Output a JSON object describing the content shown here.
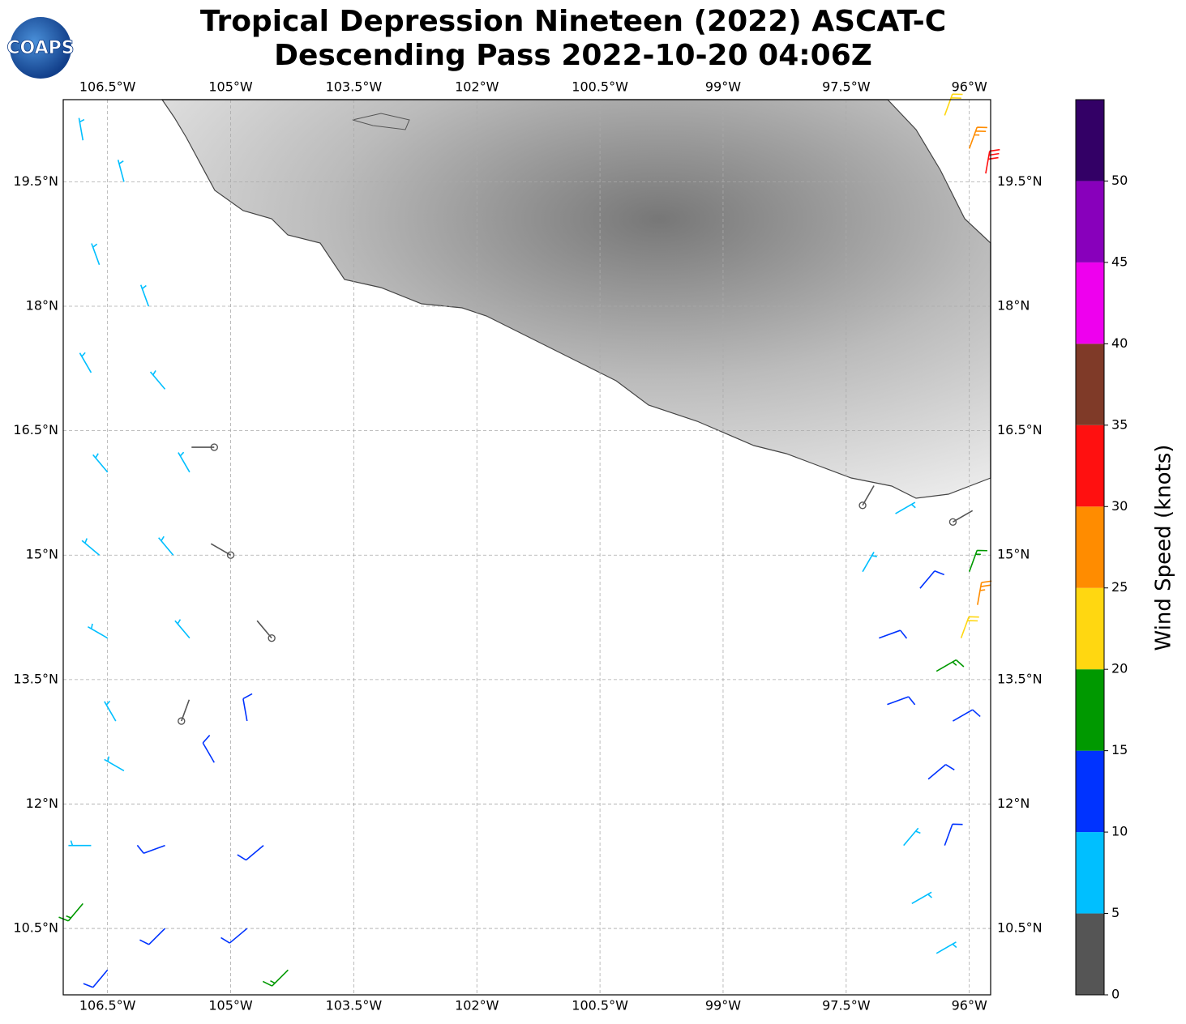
{
  "logo": "COAPS",
  "chart_data": {
    "type": "wind_barbs",
    "title": [
      "Tropical Depression Nineteen (2022) ASCAT-C",
      "Descending Pass 2022-10-20 04:06Z"
    ],
    "xlim": [
      -107.04,
      -95.74
    ],
    "ylim": [
      9.7,
      20.49
    ],
    "xticks": [
      {
        "value": -106.5,
        "label": "106.5°W"
      },
      {
        "value": -105,
        "label": "105°W"
      },
      {
        "value": -103.5,
        "label": "103.5°W"
      },
      {
        "value": -102,
        "label": "102°W"
      },
      {
        "value": -100.5,
        "label": "100.5°W"
      },
      {
        "value": -99,
        "label": "99°W"
      },
      {
        "value": -97.5,
        "label": "97.5°W"
      },
      {
        "value": -96,
        "label": "96°W"
      }
    ],
    "yticks": [
      {
        "value": 19.5,
        "label": "19.5°N"
      },
      {
        "value": 18,
        "label": "18°N"
      },
      {
        "value": 16.5,
        "label": "16.5°N"
      },
      {
        "value": 15,
        "label": "15°N"
      },
      {
        "value": 13.5,
        "label": "13.5°N"
      },
      {
        "value": 12,
        "label": "12°N"
      },
      {
        "value": 10.5,
        "label": "10.5°N"
      }
    ],
    "grid": true,
    "colorbar": {
      "label": "Wind Speed (knots)",
      "lim": [
        0,
        55
      ],
      "ticks": [
        0,
        5,
        10,
        15,
        20,
        25,
        30,
        35,
        40,
        45,
        50
      ],
      "colors": [
        "#555555",
        "#00bfff",
        "#0033ff",
        "#009900",
        "#ffd711",
        "#ff8c00",
        "#ff1010",
        "#7f3a28",
        "#ee00ee",
        "#8800bb",
        "#330066"
      ]
    },
    "wind_barbs": [
      {
        "lon": -106.8,
        "lat": 20.0,
        "speed": 8,
        "direction": 350
      },
      {
        "lon": -106.3,
        "lat": 19.5,
        "speed": 7,
        "direction": 345
      },
      {
        "lon": -106.6,
        "lat": 18.5,
        "speed": 8,
        "direction": 340
      },
      {
        "lon": -106.0,
        "lat": 18.0,
        "speed": 7,
        "direction": 340
      },
      {
        "lon": -106.7,
        "lat": 17.2,
        "speed": 8,
        "direction": 330
      },
      {
        "lon": -105.8,
        "lat": 17.0,
        "speed": 6,
        "direction": 320
      },
      {
        "lon": -106.5,
        "lat": 16.0,
        "speed": 8,
        "direction": 320
      },
      {
        "lon": -105.5,
        "lat": 16.0,
        "speed": 7,
        "direction": 330
      },
      {
        "lon": -105.2,
        "lat": 16.3,
        "speed": 3,
        "direction": 270
      },
      {
        "lon": -106.6,
        "lat": 15.0,
        "speed": 9,
        "direction": 310
      },
      {
        "lon": -105.7,
        "lat": 15.0,
        "speed": 7,
        "direction": 320
      },
      {
        "lon": -105.0,
        "lat": 15.0,
        "speed": 3,
        "direction": 300
      },
      {
        "lon": -106.5,
        "lat": 14.0,
        "speed": 8,
        "direction": 300
      },
      {
        "lon": -105.5,
        "lat": 14.0,
        "speed": 7,
        "direction": 320
      },
      {
        "lon": -104.5,
        "lat": 14.0,
        "speed": 3,
        "direction": 320
      },
      {
        "lon": -106.4,
        "lat": 13.0,
        "speed": 7,
        "direction": 330
      },
      {
        "lon": -105.6,
        "lat": 13.0,
        "speed": 4,
        "direction": 20
      },
      {
        "lon": -104.8,
        "lat": 13.0,
        "speed": 11,
        "direction": 350
      },
      {
        "lon": -106.3,
        "lat": 12.4,
        "speed": 6,
        "direction": 300
      },
      {
        "lon": -105.2,
        "lat": 12.5,
        "speed": 12,
        "direction": 330
      },
      {
        "lon": -106.7,
        "lat": 11.5,
        "speed": 8,
        "direction": 270
      },
      {
        "lon": -105.8,
        "lat": 11.5,
        "speed": 12,
        "direction": 250
      },
      {
        "lon": -104.6,
        "lat": 11.5,
        "speed": 13,
        "direction": 230
      },
      {
        "lon": -106.8,
        "lat": 10.8,
        "speed": 16,
        "direction": 220
      },
      {
        "lon": -105.8,
        "lat": 10.5,
        "speed": 13,
        "direction": 225
      },
      {
        "lon": -104.8,
        "lat": 10.5,
        "speed": 14,
        "direction": 230
      },
      {
        "lon": -104.3,
        "lat": 10.0,
        "speed": 17,
        "direction": 225
      },
      {
        "lon": -106.5,
        "lat": 10.0,
        "speed": 12,
        "direction": 220
      },
      {
        "lon": -96.9,
        "lat": 15.5,
        "speed": 7,
        "direction": 60
      },
      {
        "lon": -97.3,
        "lat": 15.6,
        "speed": 4,
        "direction": 30
      },
      {
        "lon": -96.2,
        "lat": 15.4,
        "speed": 3,
        "direction": 60
      },
      {
        "lon": -97.3,
        "lat": 14.8,
        "speed": 8,
        "direction": 30
      },
      {
        "lon": -96.6,
        "lat": 14.6,
        "speed": 11,
        "direction": 40
      },
      {
        "lon": -96.0,
        "lat": 14.8,
        "speed": 18,
        "direction": 20
      },
      {
        "lon": -95.9,
        "lat": 14.4,
        "speed": 27,
        "direction": 10
      },
      {
        "lon": -96.1,
        "lat": 14.0,
        "speed": 22,
        "direction": 20
      },
      {
        "lon": -97.1,
        "lat": 14.0,
        "speed": 12,
        "direction": 70
      },
      {
        "lon": -96.4,
        "lat": 13.6,
        "speed": 17,
        "direction": 60
      },
      {
        "lon": -97.0,
        "lat": 13.2,
        "speed": 13,
        "direction": 70
      },
      {
        "lon": -96.2,
        "lat": 13.0,
        "speed": 14,
        "direction": 60
      },
      {
        "lon": -96.5,
        "lat": 12.3,
        "speed": 12,
        "direction": 50
      },
      {
        "lon": -96.8,
        "lat": 11.5,
        "speed": 8,
        "direction": 40
      },
      {
        "lon": -96.3,
        "lat": 11.5,
        "speed": 12,
        "direction": 20
      },
      {
        "lon": -96.7,
        "lat": 10.8,
        "speed": 8,
        "direction": 60
      },
      {
        "lon": -96.4,
        "lat": 10.2,
        "speed": 7,
        "direction": 60
      },
      {
        "lon": -96.3,
        "lat": 20.3,
        "speed": 23,
        "direction": 20
      },
      {
        "lon": -96.0,
        "lat": 19.9,
        "speed": 27,
        "direction": 20
      },
      {
        "lon": -95.8,
        "lat": 19.6,
        "speed": 31,
        "direction": 10
      }
    ]
  }
}
